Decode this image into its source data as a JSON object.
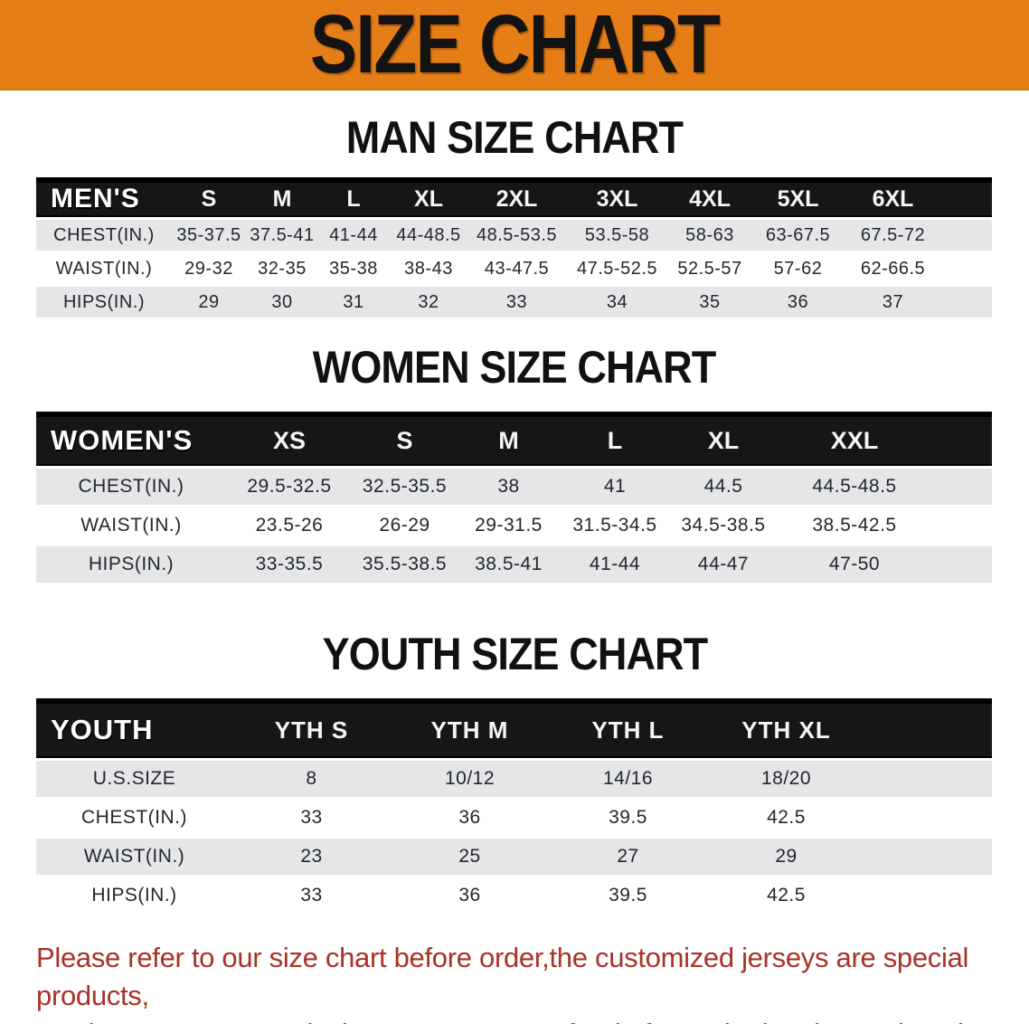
{
  "banner": {
    "title": "SIZE CHART",
    "bg_color": "#E67E17"
  },
  "man": {
    "heading": "MAN SIZE CHART",
    "table": {
      "label": "MEN'S",
      "sizes": [
        "S",
        "M",
        "L",
        "XL",
        "2XL",
        "3XL",
        "4XL",
        "5XL",
        "6XL"
      ],
      "rows": [
        {
          "label": "CHEST(IN.)",
          "values": [
            "35-37.5",
            "37.5-41",
            "41-44",
            "44-48.5",
            "48.5-53.5",
            "53.5-58",
            "58-63",
            "63-67.5",
            "67.5-72"
          ]
        },
        {
          "label": "WAIST(IN.)",
          "values": [
            "29-32",
            "32-35",
            "35-38",
            "38-43",
            "43-47.5",
            "47.5-52.5",
            "52.5-57",
            "57-62",
            "62-66.5"
          ]
        },
        {
          "label": "HIPS(IN.)",
          "values": [
            "29",
            "30",
            "31",
            "32",
            "33",
            "34",
            "35",
            "36",
            "37"
          ]
        }
      ]
    }
  },
  "women": {
    "heading": "WOMEN SIZE CHART",
    "table": {
      "label": "WOMEN'S",
      "sizes": [
        "XS",
        "S",
        "M",
        "L",
        "XL",
        "XXL"
      ],
      "rows": [
        {
          "label": "CHEST(IN.)",
          "values": [
            "29.5-32.5",
            "32.5-35.5",
            "38",
            "41",
            "44.5",
            "44.5-48.5"
          ]
        },
        {
          "label": "WAIST(IN.)",
          "values": [
            "23.5-26",
            "26-29",
            "29-31.5",
            "31.5-34.5",
            "34.5-38.5",
            "38.5-42.5"
          ]
        },
        {
          "label": "HIPS(IN.)",
          "values": [
            "33-35.5",
            "35.5-38.5",
            "38.5-41",
            "41-44",
            "44-47",
            "47-50"
          ]
        }
      ]
    }
  },
  "youth": {
    "heading": "YOUTH SIZE CHART",
    "table": {
      "label": "YOUTH",
      "sizes": [
        "YTH S",
        "YTH M",
        "YTH L",
        "YTH XL"
      ],
      "rows": [
        {
          "label": "U.S.SIZE",
          "values": [
            "8",
            "10/12",
            "14/16",
            "18/20"
          ]
        },
        {
          "label": "CHEST(IN.)",
          "values": [
            "33",
            "36",
            "39.5",
            "42.5"
          ]
        },
        {
          "label": "WAIST(IN.)",
          "values": [
            "23",
            "25",
            "27",
            "29"
          ]
        },
        {
          "label": "HIPS(IN.)",
          "values": [
            "33",
            "36",
            "39.5",
            "42.5"
          ]
        }
      ]
    }
  },
  "footer": {
    "line1": "Please refer to our size chart before order,the customized jerseys are special products,",
    "line2": "we don't accept cancel, change, teturn or refund after order has been placed!",
    "text_color": "#A93228"
  }
}
